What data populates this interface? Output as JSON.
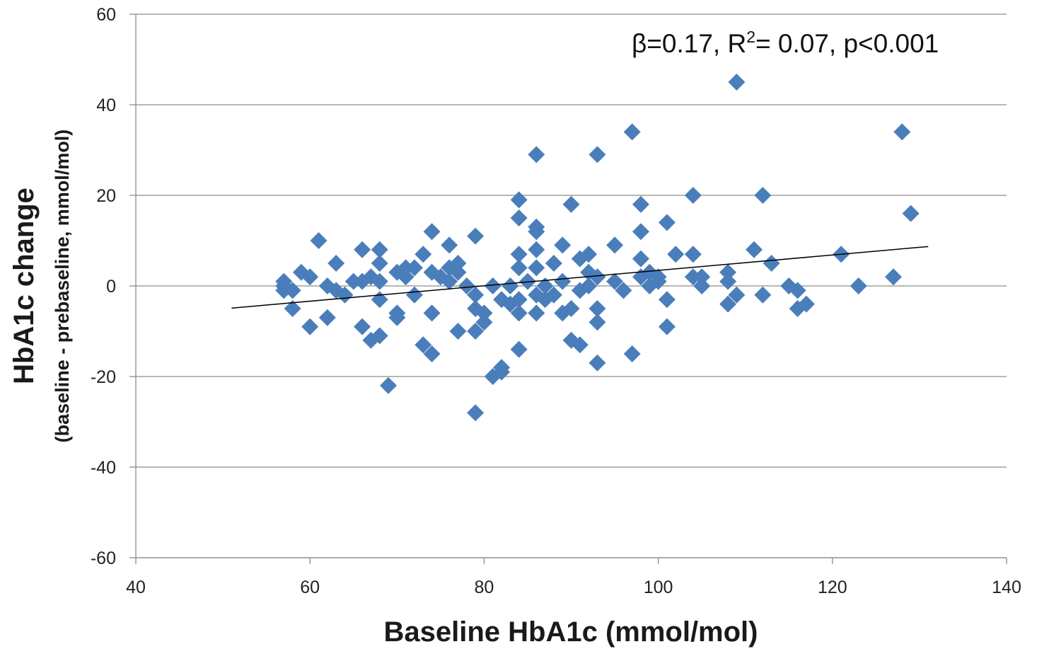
{
  "chart_data": {
    "type": "scatter",
    "title": "",
    "xlabel": "Baseline HbA1c (mmol/mol)",
    "ylabel": "HbA1c change",
    "ylabel_sub": "(baseline - prebaseline, mmol/mol)",
    "xlim": [
      40,
      140
    ],
    "ylim": [
      -60,
      60
    ],
    "xticks": [
      "40",
      "60",
      "80",
      "100",
      "120",
      "140"
    ],
    "yticks": [
      "60",
      "40",
      "20",
      "0",
      "-20",
      "-40",
      "-60"
    ],
    "grid": "horizontal",
    "marker": "diamond",
    "marker_color": "#4A7EBB",
    "annotation": {
      "prefix": "β=0.17, R",
      "sup": "2",
      "suffix": "= 0.07, p<0.001"
    },
    "trendline": {
      "x": [
        51,
        131
      ],
      "y": [
        -4.9,
        8.7
      ]
    },
    "points": [
      [
        57,
        1
      ],
      [
        57,
        0
      ],
      [
        57,
        -1
      ],
      [
        58,
        -5
      ],
      [
        58,
        -1
      ],
      [
        59,
        3
      ],
      [
        60,
        2
      ],
      [
        60,
        -9
      ],
      [
        61,
        10
      ],
      [
        62,
        0
      ],
      [
        62,
        -7
      ],
      [
        63,
        5
      ],
      [
        63,
        -1
      ],
      [
        64,
        -2
      ],
      [
        65,
        1
      ],
      [
        66,
        8
      ],
      [
        66,
        1
      ],
      [
        66,
        -9
      ],
      [
        67,
        2
      ],
      [
        67,
        -12
      ],
      [
        68,
        8
      ],
      [
        68,
        5
      ],
      [
        68,
        1
      ],
      [
        68,
        -3
      ],
      [
        68,
        -11
      ],
      [
        69,
        -22
      ],
      [
        70,
        3
      ],
      [
        70,
        -6
      ],
      [
        70,
        -7
      ],
      [
        71,
        4
      ],
      [
        71,
        2
      ],
      [
        72,
        4
      ],
      [
        72,
        -2
      ],
      [
        73,
        7
      ],
      [
        73,
        -13
      ],
      [
        74,
        12
      ],
      [
        74,
        3
      ],
      [
        74,
        -6
      ],
      [
        74,
        -15
      ],
      [
        75,
        2
      ],
      [
        76,
        9
      ],
      [
        76,
        4
      ],
      [
        76,
        1
      ],
      [
        77,
        5
      ],
      [
        77,
        3
      ],
      [
        77,
        -10
      ],
      [
        78,
        0
      ],
      [
        79,
        11
      ],
      [
        79,
        -2
      ],
      [
        79,
        -5
      ],
      [
        79,
        -10
      ],
      [
        79,
        -28
      ],
      [
        80,
        -6
      ],
      [
        80,
        -8
      ],
      [
        81,
        0
      ],
      [
        81,
        -20
      ],
      [
        82,
        -18
      ],
      [
        82,
        -19
      ],
      [
        82,
        -3
      ],
      [
        83,
        0
      ],
      [
        83,
        -4
      ],
      [
        84,
        19
      ],
      [
        84,
        15
      ],
      [
        84,
        7
      ],
      [
        84,
        4
      ],
      [
        84,
        -3
      ],
      [
        84,
        -6
      ],
      [
        84,
        -14
      ],
      [
        85,
        1
      ],
      [
        86,
        29
      ],
      [
        86,
        13
      ],
      [
        86,
        12
      ],
      [
        86,
        8
      ],
      [
        86,
        4
      ],
      [
        86,
        -2
      ],
      [
        86,
        -6
      ],
      [
        87,
        0
      ],
      [
        87,
        -3
      ],
      [
        88,
        5
      ],
      [
        88,
        -2
      ],
      [
        89,
        9
      ],
      [
        89,
        1
      ],
      [
        89,
        -6
      ],
      [
        90,
        18
      ],
      [
        90,
        -5
      ],
      [
        90,
        -12
      ],
      [
        91,
        6
      ],
      [
        91,
        -1
      ],
      [
        91,
        -13
      ],
      [
        92,
        7
      ],
      [
        92,
        3
      ],
      [
        92,
        0
      ],
      [
        93,
        29
      ],
      [
        93,
        2
      ],
      [
        93,
        -5
      ],
      [
        93,
        -8
      ],
      [
        93,
        -17
      ],
      [
        95,
        9
      ],
      [
        95,
        1
      ],
      [
        96,
        -1
      ],
      [
        97,
        34
      ],
      [
        97,
        -15
      ],
      [
        98,
        18
      ],
      [
        98,
        12
      ],
      [
        98,
        6
      ],
      [
        98,
        2
      ],
      [
        99,
        3
      ],
      [
        99,
        0
      ],
      [
        100,
        2
      ],
      [
        100,
        1
      ],
      [
        101,
        14
      ],
      [
        101,
        -3
      ],
      [
        101,
        -9
      ],
      [
        102,
        7
      ],
      [
        104,
        20
      ],
      [
        104,
        7
      ],
      [
        104,
        2
      ],
      [
        105,
        2
      ],
      [
        105,
        0
      ],
      [
        108,
        3
      ],
      [
        108,
        1
      ],
      [
        108,
        -4
      ],
      [
        109,
        45
      ],
      [
        109,
        -2
      ],
      [
        111,
        8
      ],
      [
        112,
        20
      ],
      [
        112,
        -2
      ],
      [
        113,
        5
      ],
      [
        115,
        0
      ],
      [
        116,
        -1
      ],
      [
        116,
        -5
      ],
      [
        117,
        -4
      ],
      [
        121,
        7
      ],
      [
        123,
        0
      ],
      [
        127,
        2
      ],
      [
        128,
        34
      ],
      [
        129,
        16
      ]
    ]
  }
}
